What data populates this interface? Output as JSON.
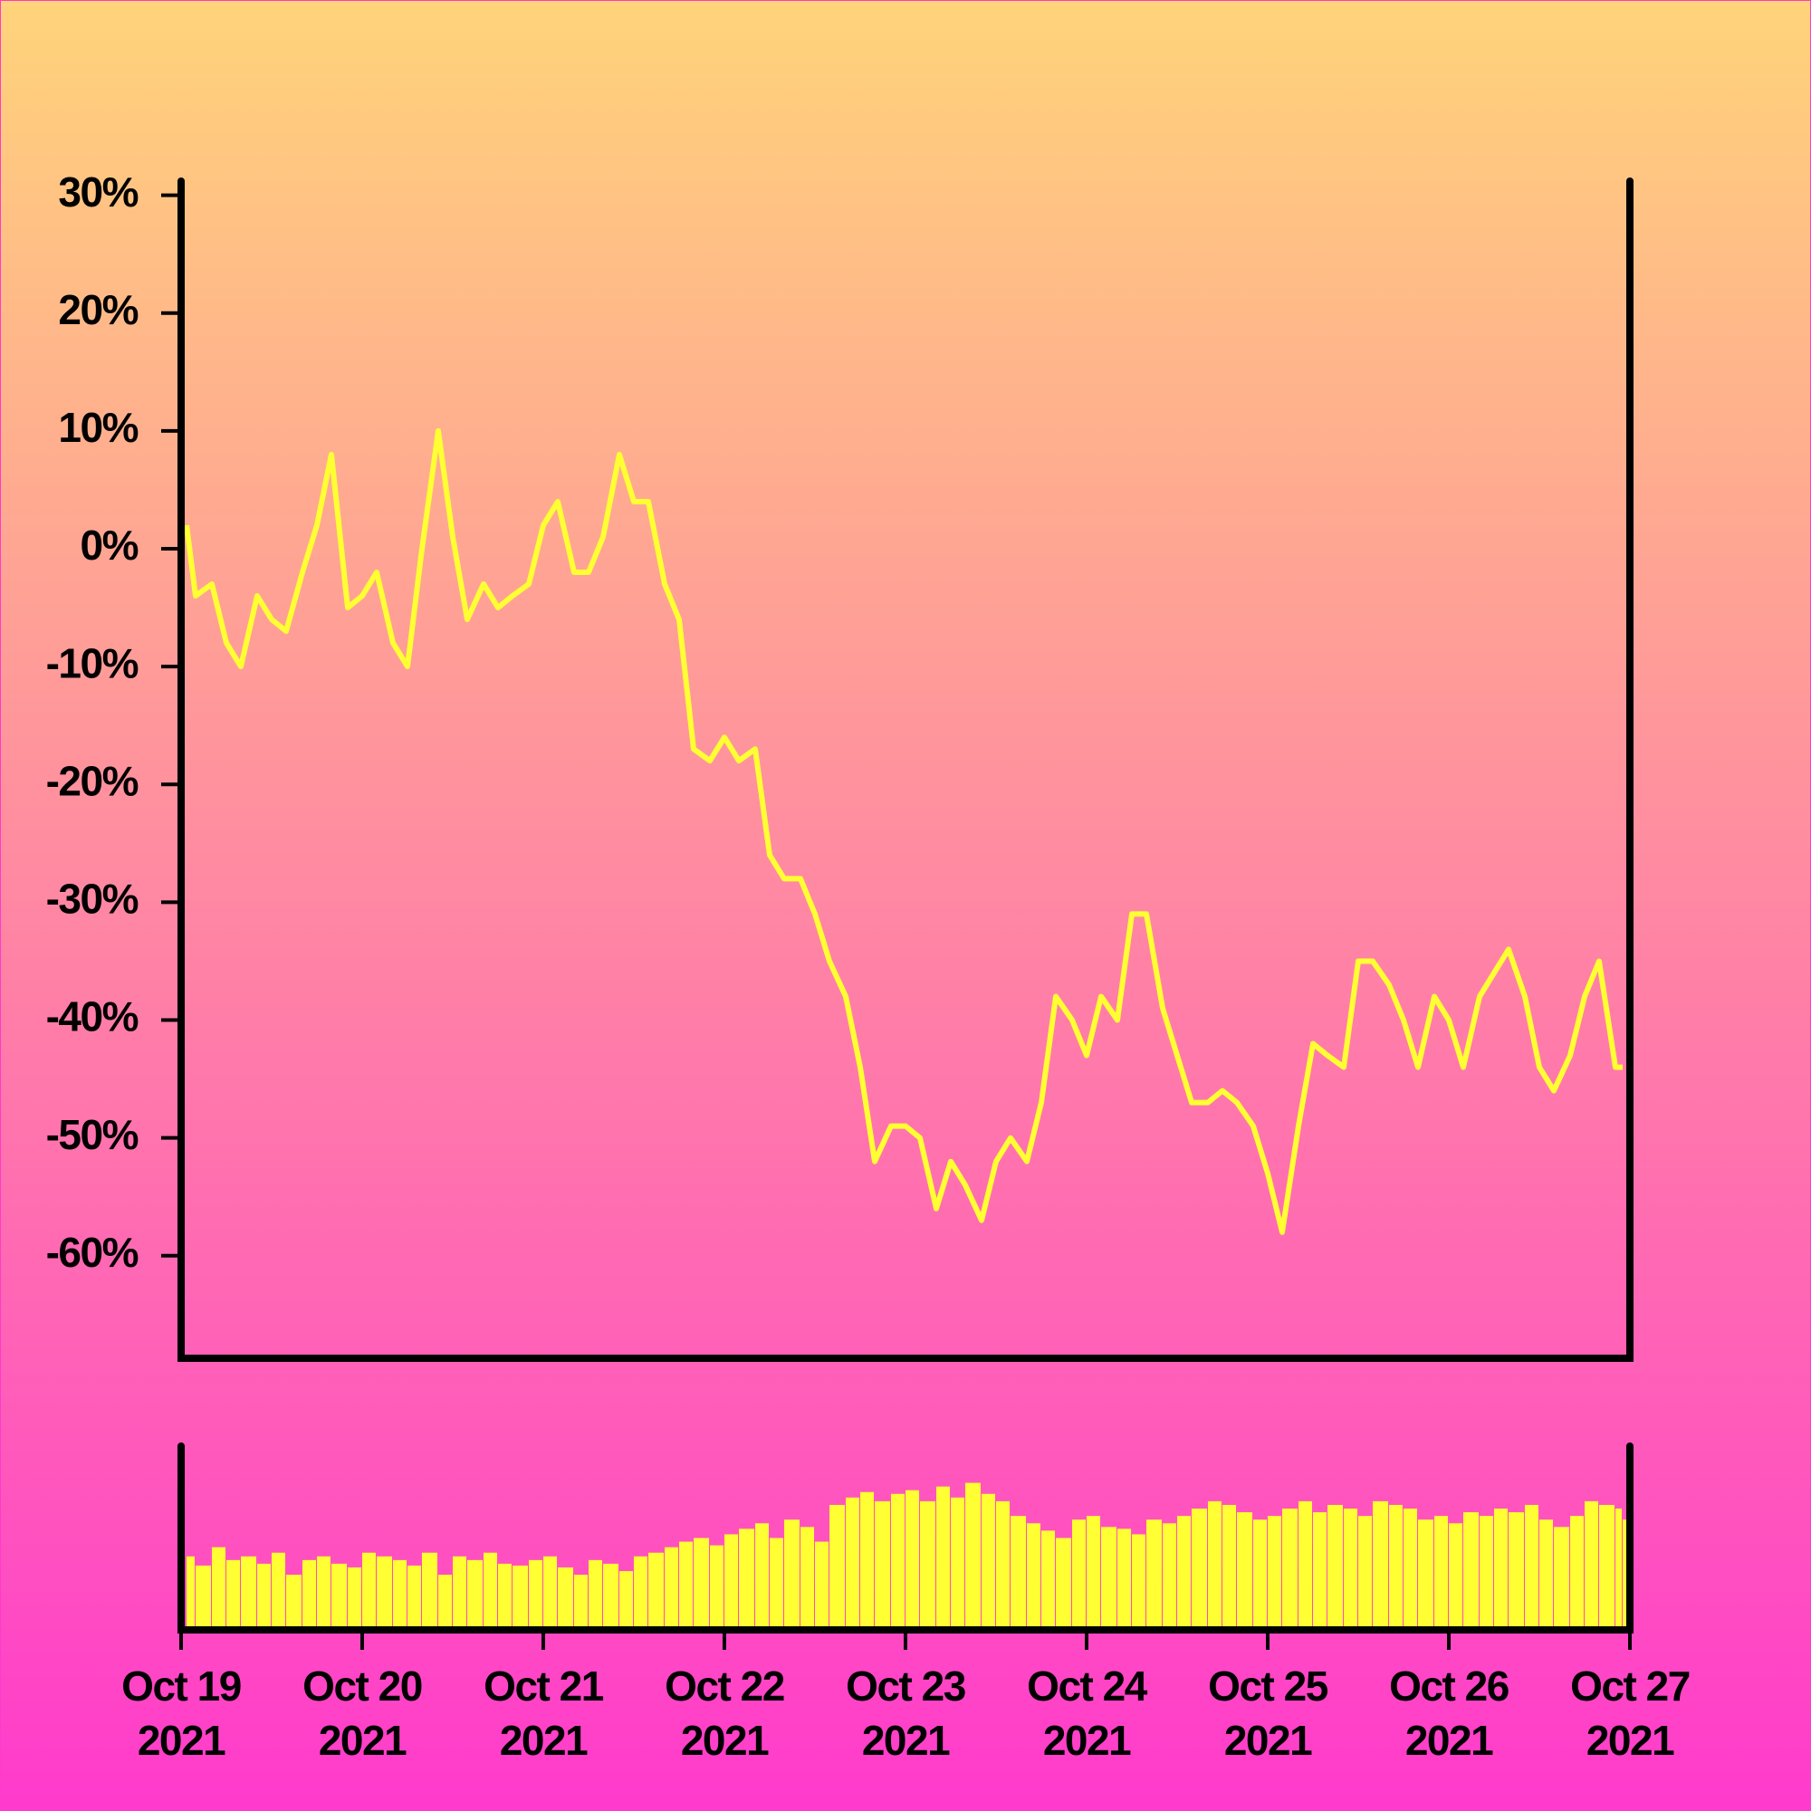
{
  "chart_data": [
    {
      "type": "line",
      "color": "#ffff33",
      "xlim": [
        0,
        8
      ],
      "x": [
        0.03,
        0.08,
        0.17,
        0.25,
        0.33,
        0.42,
        0.5,
        0.58,
        0.67,
        0.75,
        0.83,
        0.92,
        1,
        1.08,
        1.17,
        1.25,
        1.33,
        1.42,
        1.5,
        1.58,
        1.67,
        1.75,
        1.83,
        1.92,
        2,
        2.08,
        2.17,
        2.25,
        2.33,
        2.42,
        2.5,
        2.58,
        2.67,
        2.75,
        2.83,
        2.92,
        3,
        3.08,
        3.17,
        3.25,
        3.33,
        3.42,
        3.5,
        3.58,
        3.67,
        3.75,
        3.83,
        3.92,
        4,
        4.08,
        4.17,
        4.25,
        4.33,
        4.42,
        4.5,
        4.58,
        4.67,
        4.75,
        4.83,
        4.92,
        5,
        5.08,
        5.17,
        5.25,
        5.33,
        5.42,
        5.5,
        5.58,
        5.67,
        5.75,
        5.83,
        5.92,
        6,
        6.08,
        6.17,
        6.25,
        6.33,
        6.42,
        6.5,
        6.58,
        6.67,
        6.75,
        6.83,
        6.92,
        7,
        7.08,
        7.17,
        7.25,
        7.33,
        7.42,
        7.5,
        7.58,
        7.67,
        7.75,
        7.83,
        7.92,
        7.96
      ],
      "values": [
        2,
        -4,
        -3,
        -8,
        -10,
        -4,
        -6,
        -7,
        -2,
        2,
        8,
        -5,
        -4,
        -2,
        -8,
        -10,
        0,
        10,
        1,
        -6,
        -3,
        -5,
        -4,
        -3,
        2,
        4,
        -2,
        -2,
        1,
        8,
        4,
        4,
        -3,
        -6,
        -17,
        -18,
        -16,
        -18,
        -17,
        -26,
        -28,
        -28,
        -31,
        -35,
        -38,
        -44,
        -52,
        -49,
        -49,
        -50,
        -56,
        -52,
        -54,
        -57,
        -52,
        -50,
        -52,
        -47,
        -38,
        -40,
        -43,
        -38,
        -40,
        -31,
        -31,
        -39,
        -43,
        -47,
        -47,
        -46,
        -47,
        -49,
        -53,
        -58,
        -49,
        -42,
        -43,
        -44,
        -35,
        -35,
        -37,
        -40,
        -44,
        -38,
        -40,
        -44,
        -38,
        -36,
        -34,
        -38,
        -44,
        -46,
        -43,
        -38,
        -35,
        -44,
        -44
      ],
      "ylim": [
        -68.7,
        31.2
      ],
      "yticks": [
        {
          "value": 30,
          "label": "30%"
        },
        {
          "value": 20,
          "label": "20%"
        },
        {
          "value": 10,
          "label": "10%"
        },
        {
          "value": 0,
          "label": "0%"
        },
        {
          "value": -10,
          "label": "-10%"
        },
        {
          "value": -20,
          "label": "-20%"
        },
        {
          "value": -30,
          "label": "-30%"
        },
        {
          "value": -40,
          "label": "-40%"
        },
        {
          "value": -50,
          "label": "-50%"
        },
        {
          "value": -60,
          "label": "-60%"
        }
      ]
    },
    {
      "type": "bar",
      "color": "#ffff33",
      "xlim": [
        0,
        8
      ],
      "x": [
        0.03,
        0.08,
        0.17,
        0.25,
        0.33,
        0.42,
        0.5,
        0.58,
        0.67,
        0.75,
        0.83,
        0.92,
        1,
        1.08,
        1.17,
        1.25,
        1.33,
        1.42,
        1.5,
        1.58,
        1.67,
        1.75,
        1.83,
        1.92,
        2,
        2.08,
        2.17,
        2.25,
        2.33,
        2.42,
        2.5,
        2.58,
        2.67,
        2.75,
        2.83,
        2.92,
        3,
        3.08,
        3.17,
        3.25,
        3.33,
        3.42,
        3.5,
        3.58,
        3.67,
        3.75,
        3.83,
        3.92,
        4,
        4.08,
        4.17,
        4.25,
        4.33,
        4.42,
        4.5,
        4.58,
        4.67,
        4.75,
        4.83,
        4.92,
        5,
        5.08,
        5.17,
        5.25,
        5.33,
        5.42,
        5.5,
        5.58,
        5.67,
        5.75,
        5.83,
        5.92,
        6,
        6.08,
        6.17,
        6.25,
        6.33,
        6.42,
        6.5,
        6.58,
        6.67,
        6.75,
        6.83,
        6.92,
        7,
        7.08,
        7.17,
        7.25,
        7.33,
        7.42,
        7.5,
        7.58,
        7.67,
        7.75,
        7.83,
        7.92,
        7.96
      ],
      "values": [
        40,
        35,
        45,
        38,
        40,
        36,
        42,
        30,
        38,
        40,
        36,
        34,
        42,
        40,
        38,
        35,
        42,
        30,
        40,
        38,
        42,
        36,
        35,
        38,
        40,
        34,
        30,
        38,
        36,
        32,
        40,
        42,
        45,
        48,
        50,
        46,
        52,
        55,
        58,
        50,
        60,
        56,
        48,
        68,
        72,
        75,
        70,
        74,
        76,
        70,
        78,
        72,
        80,
        74,
        70,
        62,
        58,
        54,
        50,
        60,
        62,
        56,
        55,
        52,
        60,
        58,
        62,
        66,
        70,
        68,
        64,
        60,
        62,
        66,
        70,
        64,
        68,
        66,
        62,
        70,
        68,
        66,
        60,
        62,
        58,
        64,
        62,
        66,
        64,
        68,
        60,
        56,
        62,
        70,
        68,
        66,
        60
      ],
      "ylim": [
        0,
        100
      ],
      "xticks": [
        {
          "value": 0,
          "label": [
            "Oct 19",
            "2021"
          ]
        },
        {
          "value": 1,
          "label": [
            "Oct 20",
            "2021"
          ]
        },
        {
          "value": 2,
          "label": [
            "Oct 21",
            "2021"
          ]
        },
        {
          "value": 3,
          "label": [
            "Oct 22",
            "2021"
          ]
        },
        {
          "value": 4,
          "label": [
            "Oct 23",
            "2021"
          ]
        },
        {
          "value": 5,
          "label": [
            "Oct 24",
            "2021"
          ]
        },
        {
          "value": 6,
          "label": [
            "Oct 25",
            "2021"
          ]
        },
        {
          "value": 7,
          "label": [
            "Oct 26",
            "2021"
          ]
        },
        {
          "value": 8,
          "label": [
            "Oct 27",
            "2021"
          ]
        }
      ]
    }
  ]
}
